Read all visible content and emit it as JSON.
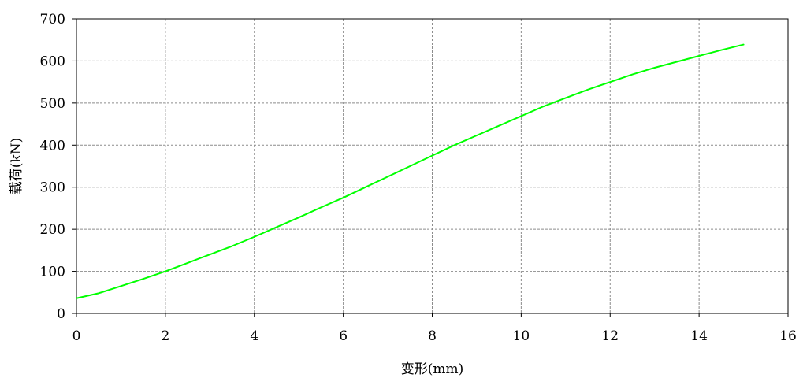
{
  "chart_data": {
    "type": "line",
    "xlabel": "变形(mm)",
    "ylabel": "载荷(kN)",
    "xlim": [
      0,
      16
    ],
    "ylim": [
      0,
      700
    ],
    "xticks": [
      0,
      2,
      4,
      6,
      8,
      10,
      12,
      14,
      16
    ],
    "yticks": [
      0,
      100,
      200,
      300,
      400,
      500,
      600,
      700
    ],
    "grid": true,
    "series": [
      {
        "color": "#00ff00",
        "x": [
          0,
          0.5,
          1,
          1.5,
          2,
          2.5,
          3,
          3.5,
          4,
          4.5,
          5,
          5.5,
          6,
          6.5,
          7,
          7.5,
          8,
          8.5,
          9,
          9.5,
          10,
          10.5,
          11,
          11.5,
          12,
          12.5,
          13,
          13.5,
          14,
          14.5,
          15
        ],
        "y": [
          36,
          48,
          65,
          82,
          100,
          120,
          140,
          160,
          182,
          205,
          228,
          252,
          275,
          300,
          325,
          350,
          375,
          400,
          423,
          446,
          469,
          492,
          512,
          532,
          550,
          568,
          584,
          598,
          612,
          626,
          639
        ]
      }
    ]
  },
  "colors": {
    "line": "#00ff00",
    "grid": "#8c8c8c",
    "axis": "#000000"
  }
}
